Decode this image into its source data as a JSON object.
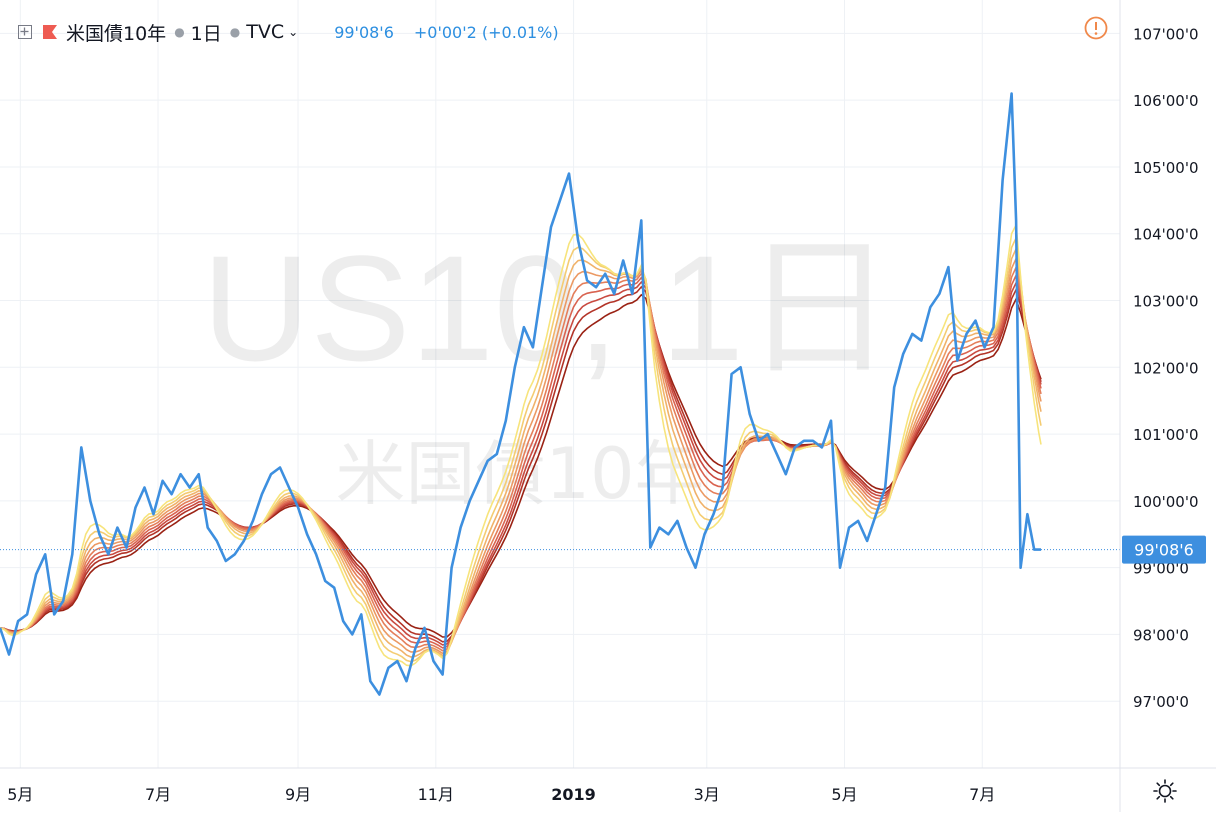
{
  "header": {
    "symbol": "米国債10年",
    "interval": "1日",
    "source": "TVC",
    "price": "99'08'6",
    "change": "+0'00'2 (+0.01%)"
  },
  "watermark": {
    "main": "US10, 1日",
    "sub": "米国債10年"
  },
  "last_price_label": "99'08'6",
  "colors": {
    "price_line": "#3d8fdf",
    "ribbon": [
      "#f7e47c",
      "#f4cc72",
      "#f0b26a",
      "#eb9963",
      "#e47e5a",
      "#d96350",
      "#c94a40",
      "#b33428",
      "#9a2214"
    ],
    "grid": "#eef1f5",
    "accent_alert": "#f0884a"
  },
  "icons": [
    "expand-icon",
    "flag-icon",
    "alert-icon",
    "settings-icon"
  ],
  "chart_data": {
    "type": "line",
    "ylim": [
      96.0,
      107.5
    ],
    "y_ticks": [
      {
        "value": 97,
        "label": "97'00'0"
      },
      {
        "value": 98,
        "label": "98'00'0"
      },
      {
        "value": 99,
        "label": "99'00'0"
      },
      {
        "value": 100,
        "label": "100'00'0"
      },
      {
        "value": 101,
        "label": "101'00'0"
      },
      {
        "value": 102,
        "label": "102'00'0"
      },
      {
        "value": 103,
        "label": "103'00'0"
      },
      {
        "value": 104,
        "label": "104'00'0"
      },
      {
        "value": 105,
        "label": "105'00'0"
      },
      {
        "value": 106,
        "label": "106'00'0"
      },
      {
        "value": 107,
        "label": "107'00'0"
      }
    ],
    "x_ticks": [
      {
        "date": "2018-05-01",
        "label": "5月"
      },
      {
        "date": "2018-07-01",
        "label": "7月"
      },
      {
        "date": "2018-09-01",
        "label": "9月"
      },
      {
        "date": "2018-11-01",
        "label": "11月"
      },
      {
        "date": "2019-01-01",
        "label": "2019"
      },
      {
        "date": "2019-03-01",
        "label": "3月"
      },
      {
        "date": "2019-05-01",
        "label": "5月"
      },
      {
        "date": "2019-07-01",
        "label": "7月"
      }
    ],
    "xlim": [
      "2018-04-22",
      "2019-08-31"
    ],
    "last_value": 99.27,
    "series": [
      {
        "values": [
          [
            "2018-04-22",
            98.1
          ],
          [
            "2018-04-26",
            97.7
          ],
          [
            "2018-04-30",
            98.2
          ],
          [
            "2018-05-04",
            98.3
          ],
          [
            "2018-05-08",
            98.9
          ],
          [
            "2018-05-12",
            99.2
          ],
          [
            "2018-05-16",
            98.3
          ],
          [
            "2018-05-20",
            98.5
          ],
          [
            "2018-05-24",
            99.2
          ],
          [
            "2018-05-28",
            100.8
          ],
          [
            "2018-06-01",
            100.0
          ],
          [
            "2018-06-05",
            99.5
          ],
          [
            "2018-06-09",
            99.2
          ],
          [
            "2018-06-13",
            99.6
          ],
          [
            "2018-06-17",
            99.3
          ],
          [
            "2018-06-21",
            99.9
          ],
          [
            "2018-06-25",
            100.2
          ],
          [
            "2018-06-29",
            99.8
          ],
          [
            "2018-07-03",
            100.3
          ],
          [
            "2018-07-07",
            100.1
          ],
          [
            "2018-07-11",
            100.4
          ],
          [
            "2018-07-15",
            100.2
          ],
          [
            "2018-07-19",
            100.4
          ],
          [
            "2018-07-23",
            99.6
          ],
          [
            "2018-07-27",
            99.4
          ],
          [
            "2018-07-31",
            99.1
          ],
          [
            "2018-08-04",
            99.2
          ],
          [
            "2018-08-08",
            99.4
          ],
          [
            "2018-08-12",
            99.7
          ],
          [
            "2018-08-16",
            100.1
          ],
          [
            "2018-08-20",
            100.4
          ],
          [
            "2018-08-24",
            100.5
          ],
          [
            "2018-08-28",
            100.2
          ],
          [
            "2018-09-01",
            99.9
          ],
          [
            "2018-09-05",
            99.5
          ],
          [
            "2018-09-09",
            99.2
          ],
          [
            "2018-09-13",
            98.8
          ],
          [
            "2018-09-17",
            98.7
          ],
          [
            "2018-09-21",
            98.2
          ],
          [
            "2018-09-25",
            98.0
          ],
          [
            "2018-09-29",
            98.3
          ],
          [
            "2018-10-03",
            97.3
          ],
          [
            "2018-10-07",
            97.1
          ],
          [
            "2018-10-11",
            97.5
          ],
          [
            "2018-10-15",
            97.6
          ],
          [
            "2018-10-19",
            97.3
          ],
          [
            "2018-10-23",
            97.8
          ],
          [
            "2018-10-27",
            98.1
          ],
          [
            "2018-10-31",
            97.6
          ],
          [
            "2018-11-04",
            97.4
          ],
          [
            "2018-11-08",
            99.0
          ],
          [
            "2018-11-12",
            99.6
          ],
          [
            "2018-11-16",
            100.0
          ],
          [
            "2018-11-20",
            100.3
          ],
          [
            "2018-11-24",
            100.6
          ],
          [
            "2018-11-28",
            100.7
          ],
          [
            "2018-12-02",
            101.2
          ],
          [
            "2018-12-06",
            102.0
          ],
          [
            "2018-12-10",
            102.6
          ],
          [
            "2018-12-14",
            102.3
          ],
          [
            "2018-12-18",
            103.2
          ],
          [
            "2018-12-22",
            104.1
          ],
          [
            "2018-12-26",
            104.5
          ],
          [
            "2018-12-30",
            104.9
          ],
          [
            "2019-01-03",
            103.9
          ],
          [
            "2019-01-07",
            103.3
          ],
          [
            "2019-01-11",
            103.2
          ],
          [
            "2019-01-15",
            103.4
          ],
          [
            "2019-01-19",
            103.1
          ],
          [
            "2019-01-23",
            103.6
          ],
          [
            "2019-01-27",
            103.1
          ],
          [
            "2019-01-31",
            104.2
          ],
          [
            "2019-02-04",
            99.3
          ],
          [
            "2019-02-08",
            99.6
          ],
          [
            "2019-02-12",
            99.5
          ],
          [
            "2019-02-16",
            99.7
          ],
          [
            "2019-02-20",
            99.3
          ],
          [
            "2019-02-24",
            99.0
          ],
          [
            "2019-02-28",
            99.5
          ],
          [
            "2019-03-04",
            99.8
          ],
          [
            "2019-03-08",
            100.2
          ],
          [
            "2019-03-12",
            101.9
          ],
          [
            "2019-03-16",
            102.0
          ],
          [
            "2019-03-20",
            101.3
          ],
          [
            "2019-03-24",
            100.9
          ],
          [
            "2019-03-28",
            101.0
          ],
          [
            "2019-04-01",
            100.7
          ],
          [
            "2019-04-05",
            100.4
          ],
          [
            "2019-04-09",
            100.8
          ],
          [
            "2019-04-13",
            100.9
          ],
          [
            "2019-04-17",
            100.9
          ],
          [
            "2019-04-21",
            100.8
          ],
          [
            "2019-04-25",
            101.2
          ],
          [
            "2019-04-29",
            99.0
          ],
          [
            "2019-05-03",
            99.6
          ],
          [
            "2019-05-07",
            99.7
          ],
          [
            "2019-05-11",
            99.4
          ],
          [
            "2019-05-15",
            99.8
          ],
          [
            "2019-05-19",
            100.2
          ],
          [
            "2019-05-23",
            101.7
          ],
          [
            "2019-05-27",
            102.2
          ],
          [
            "2019-05-31",
            102.5
          ],
          [
            "2019-06-04",
            102.4
          ],
          [
            "2019-06-08",
            102.9
          ],
          [
            "2019-06-12",
            103.1
          ],
          [
            "2019-06-16",
            103.5
          ],
          [
            "2019-06-20",
            102.1
          ],
          [
            "2019-06-24",
            102.5
          ],
          [
            "2019-06-28",
            102.7
          ],
          [
            "2019-07-02",
            102.3
          ],
          [
            "2019-07-06",
            102.6
          ],
          [
            "2019-07-10",
            104.8
          ],
          [
            "2019-07-14",
            106.1
          ],
          [
            "2019-07-16",
            104.2
          ],
          [
            "2019-07-18",
            99.0
          ],
          [
            "2019-07-21",
            99.8
          ],
          [
            "2019-07-24",
            99.27
          ],
          [
            "2019-07-27",
            99.27
          ]
        ]
      }
    ]
  }
}
